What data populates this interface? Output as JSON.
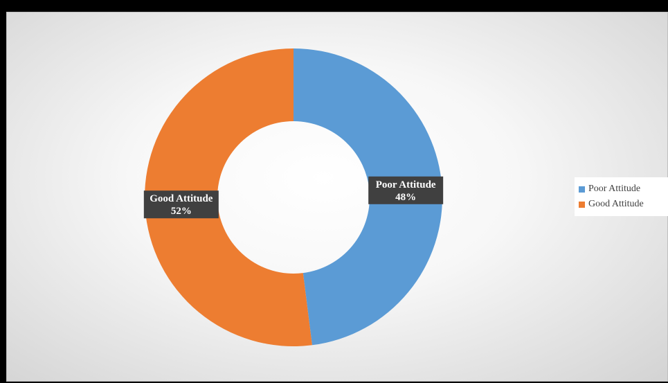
{
  "chart_data": {
    "type": "pie",
    "variant": "donut",
    "title": "",
    "categories": [
      "Poor Attitude",
      "Good Attitude"
    ],
    "values": [
      48,
      52
    ],
    "value_unit": "%",
    "colors": [
      "#5b9bd5",
      "#ed7d31"
    ],
    "data_labels": [
      {
        "category": "Poor Attitude",
        "value_text": "48%"
      },
      {
        "category": "Good Attitude",
        "value_text": "52%"
      }
    ],
    "legend": {
      "placement": "right",
      "entries": [
        "Poor Attitude",
        "Good Attitude"
      ]
    }
  }
}
